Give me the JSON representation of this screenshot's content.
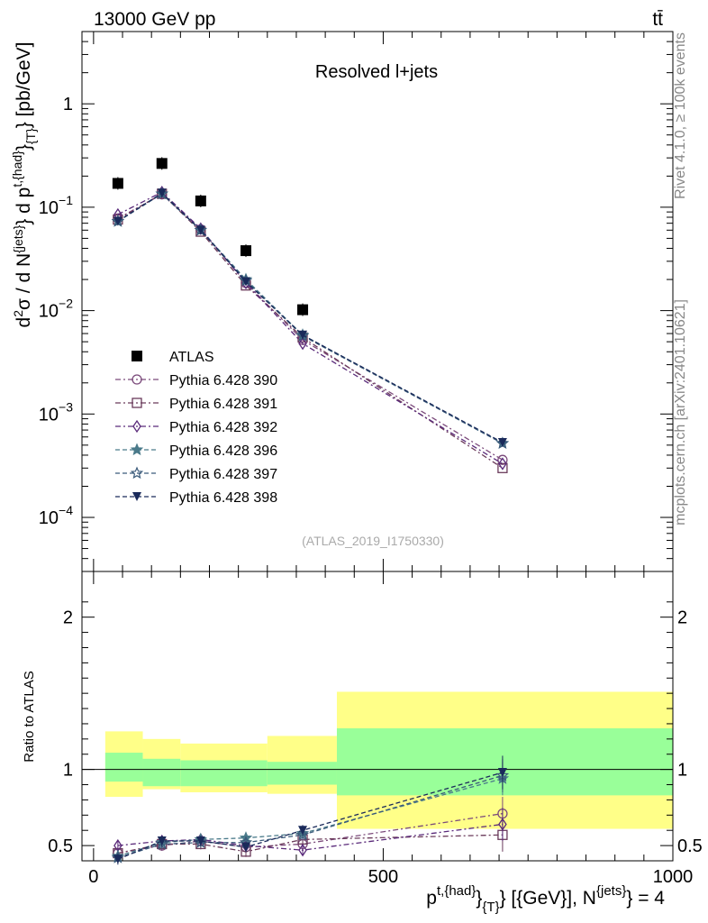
{
  "header": {
    "energy_label": "13000 GeV pp",
    "process_label": "tt̄",
    "plot_title": "Resolved l+jets",
    "analysis_id": "(ATLAS_2019_I1750330)",
    "rivet_label": "Rivet 4.1.0, ≥ 100k events",
    "mcplots_label": "mcplots.cern.ch [arXiv:2401.10621]"
  },
  "axes": {
    "ylabel_main": "d²σ / d N^{jets} d p^{t,{had}}_{T} [pb/GeV]",
    "ylabel_ratio": "Ratio to ATLAS",
    "xlabel": "p^{t,{had}}_{T} [{GeV}], N^{jets} = 4",
    "main_yticks": [
      {
        "value": 0.0001,
        "base": "10",
        "exp": "−4"
      },
      {
        "value": 0.001,
        "base": "10",
        "exp": "−3"
      },
      {
        "value": 0.01,
        "base": "10",
        "exp": "−2"
      },
      {
        "value": 0.1,
        "base": "10",
        "exp": "−1"
      },
      {
        "value": 1,
        "base": "1",
        "exp": ""
      }
    ],
    "ratio_yticks": [
      "0.5",
      "1",
      "2"
    ],
    "xticks": [
      "0",
      "500",
      "1000"
    ]
  },
  "colors": {
    "atlas": "#000000",
    "p390": "#7b4a7b",
    "p391": "#6a3a5a",
    "p392": "#5a2a7a",
    "p396": "#4a7a8a",
    "p397": "#3a5a7a",
    "p398": "#1a2a5a",
    "band_inner": "#99ff99",
    "band_outer": "#ffff88"
  },
  "chart_data": {
    "type": "scatter",
    "title": "Resolved l+jets",
    "x_scale": "linear",
    "y_scale": "log",
    "xlim": [
      -20,
      1000
    ],
    "ylim": [
      3e-05,
      5
    ],
    "ratio_ylim": [
      0.4,
      2.3
    ],
    "bins": [
      {
        "lo": 0,
        "hi": 85,
        "center": 42
      },
      {
        "lo": 85,
        "hi": 150,
        "center": 118
      },
      {
        "lo": 150,
        "hi": 300,
        "center": 185
      },
      {
        "lo": 300,
        "hi": 420,
        "center": 263
      },
      {
        "lo": 420,
        "hi": 1000,
        "center": 361
      }
    ],
    "x": [
      42,
      118,
      185,
      263,
      361,
      706
    ],
    "band_edges": [
      0,
      85,
      150,
      300,
      420,
      1000
    ],
    "band_inner": [
      [
        0.92,
        1.11
      ],
      [
        0.89,
        1.07
      ],
      [
        0.89,
        1.06
      ],
      [
        0.9,
        1.05
      ],
      [
        0.83,
        1.27
      ]
    ],
    "band_outer": [
      [
        0.82,
        1.25
      ],
      [
        0.87,
        1.2
      ],
      [
        0.85,
        1.17
      ],
      [
        0.84,
        1.22
      ],
      [
        0.61,
        1.51
      ]
    ],
    "band_segments": [
      [
        0,
        85
      ],
      [
        85,
        150
      ],
      [
        150,
        300
      ],
      [
        300,
        420
      ],
      [
        420,
        1000
      ]
    ],
    "series": [
      {
        "name": "ATLAS",
        "marker": "square-filled",
        "line": "none",
        "x": [
          42,
          118,
          185,
          263,
          361
        ],
        "values": [
          0.17,
          0.265,
          0.115,
          0.038,
          0.0102
        ]
      },
      {
        "name": "Pythia 6.428 390",
        "marker": "circle-open",
        "line": "dashdot",
        "x": [
          42,
          118,
          185,
          263,
          361,
          706
        ],
        "values": [
          0.078,
          0.133,
          0.061,
          0.0185,
          0.0052,
          0.00036
        ],
        "ratio": [
          0.45,
          0.5,
          0.53,
          0.49,
          0.51,
          0.71
        ]
      },
      {
        "name": "Pythia 6.428 391",
        "marker": "square-open",
        "line": "dashdot",
        "x": [
          42,
          118,
          185,
          263,
          361,
          706
        ],
        "values": [
          0.076,
          0.135,
          0.058,
          0.0175,
          0.0055,
          0.0003
        ],
        "ratio": [
          0.45,
          0.51,
          0.51,
          0.46,
          0.54,
          0.57
        ]
      },
      {
        "name": "Pythia 6.428 392",
        "marker": "diamond-open",
        "line": "dashdot",
        "x": [
          42,
          118,
          185,
          263,
          361,
          706
        ],
        "values": [
          0.085,
          0.14,
          0.062,
          0.0185,
          0.0048,
          0.00033
        ],
        "ratio": [
          0.5,
          0.53,
          0.54,
          0.5,
          0.47,
          0.64
        ]
      },
      {
        "name": "Pythia 6.428 396",
        "marker": "star-filled",
        "line": "dashed",
        "x": [
          42,
          118,
          185,
          263,
          361,
          706
        ],
        "values": [
          0.073,
          0.135,
          0.06,
          0.02,
          0.0058,
          0.00052
        ],
        "ratio": [
          0.43,
          0.52,
          0.54,
          0.55,
          0.58,
          0.94
        ]
      },
      {
        "name": "Pythia 6.428 397",
        "marker": "star-open",
        "line": "dashed",
        "x": [
          42,
          118,
          185,
          263,
          361,
          706
        ],
        "values": [
          0.073,
          0.135,
          0.06,
          0.0195,
          0.0057,
          0.00052
        ],
        "ratio": [
          0.42,
          0.51,
          0.52,
          0.52,
          0.57,
          0.96
        ]
      },
      {
        "name": "Pythia 6.428 398",
        "marker": "triangle-down-filled",
        "line": "dashed",
        "x": [
          42,
          118,
          185,
          263,
          361,
          706
        ],
        "values": [
          0.073,
          0.137,
          0.06,
          0.019,
          0.0058,
          0.00053
        ],
        "ratio": [
          0.41,
          0.53,
          0.53,
          0.49,
          0.6,
          0.98
        ]
      }
    ],
    "legend": [
      "ATLAS",
      "Pythia 6.428 390",
      "Pythia 6.428 391",
      "Pythia 6.428 392",
      "Pythia 6.428 396",
      "Pythia 6.428 397",
      "Pythia 6.428 398"
    ],
    "legend_position": "lower-left"
  }
}
